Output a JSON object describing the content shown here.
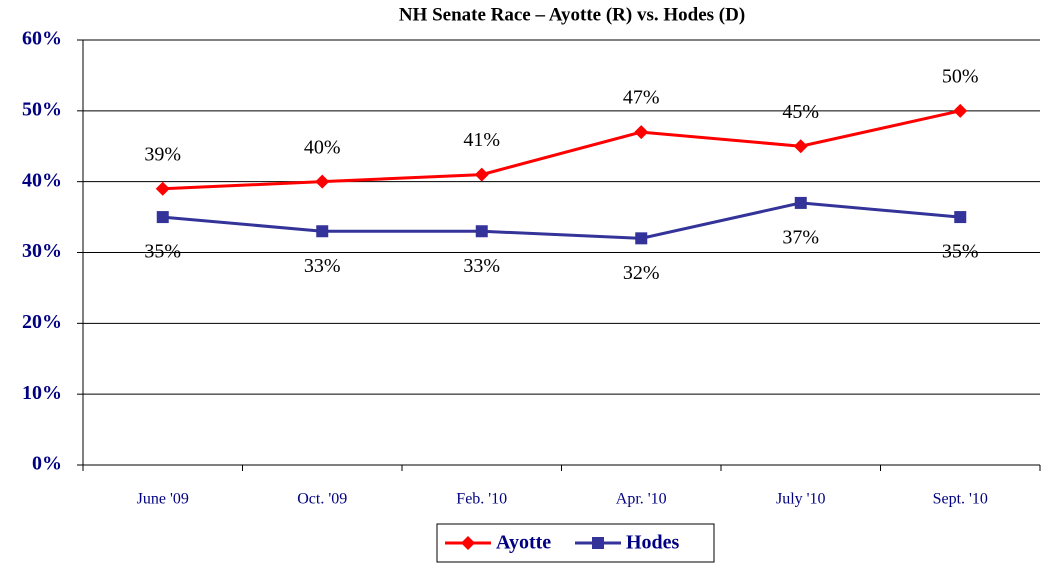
{
  "chart_data": {
    "type": "line",
    "title": "NH Senate Race – Ayotte (R) vs. Hodes (D)",
    "categories": [
      "June '09",
      "Oct. '09",
      "Feb. '10",
      "Apr. '10",
      "July '10",
      "Sept. '10"
    ],
    "series": [
      {
        "name": "Ayotte",
        "color": "#ff0000",
        "marker": "diamond",
        "label_position": "above",
        "values": [
          39,
          40,
          41,
          47,
          45,
          50
        ],
        "value_labels": [
          "39%",
          "40%",
          "41%",
          "47%",
          "45%",
          "50%"
        ]
      },
      {
        "name": "Hodes",
        "color": "#333399",
        "marker": "square",
        "label_position": "below",
        "values": [
          35,
          33,
          33,
          32,
          37,
          35
        ],
        "value_labels": [
          "35%",
          "33%",
          "33%",
          "32%",
          "37%",
          "35%"
        ]
      }
    ],
    "ylim": [
      0,
      60
    ],
    "yticks": [
      {
        "value": 0,
        "label": "0%"
      },
      {
        "value": 10,
        "label": "10%"
      },
      {
        "value": 20,
        "label": "20%"
      },
      {
        "value": 30,
        "label": "30%"
      },
      {
        "value": 40,
        "label": "40%"
      },
      {
        "value": 50,
        "label": "50%"
      },
      {
        "value": 60,
        "label": "60%"
      }
    ],
    "grid": true,
    "legend": "bottom"
  }
}
